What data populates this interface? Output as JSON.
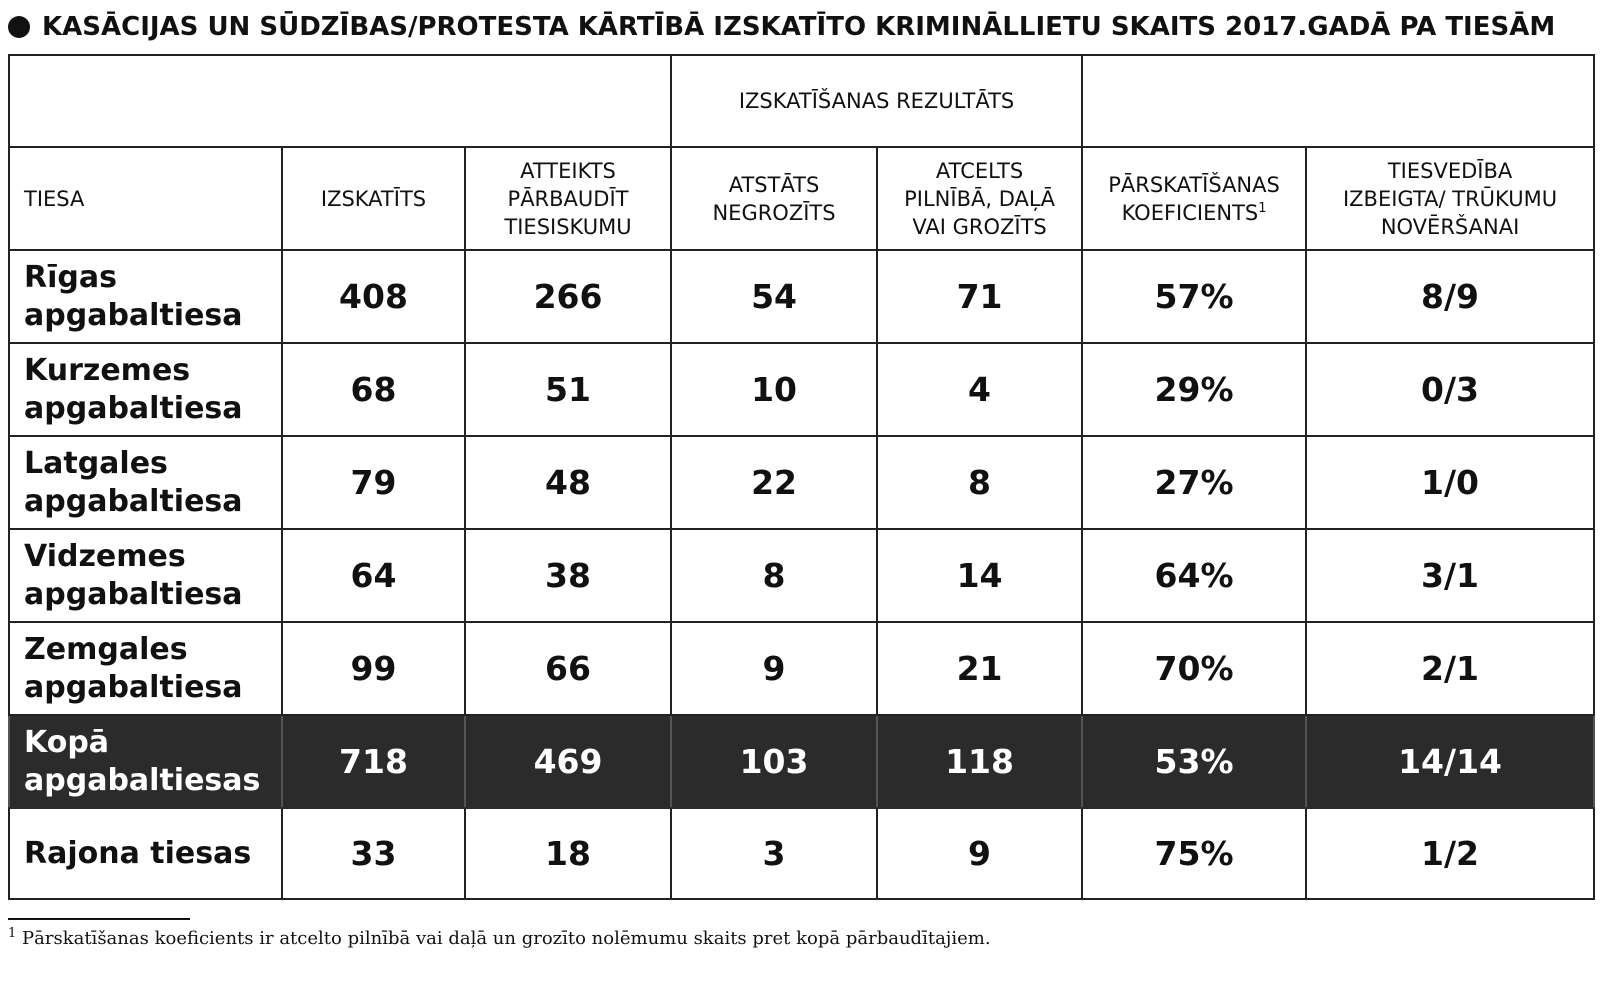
{
  "title": "KASĀCIJAS UN SŪDZĪBAS/PROTESTA KĀRTĪBĀ IZSKATĪTO KRIMINĀLLIETU SKAITS 2017.GADĀ PA TIESĀM",
  "group_header": "IZSKATĪŠANAS REZULTĀTS",
  "columns": {
    "tiesa": "TIESA",
    "izskatits": "IZSKATĪTS",
    "atteikts": [
      "ATTEIKTS",
      "PĀRBAUDĪT",
      "TIESISKUMU"
    ],
    "atstats": [
      "ATSTĀTS",
      "NEGROZĪTS"
    ],
    "atcelts": [
      "ATCELTS",
      "PILNĪBĀ, DAĻĀ",
      "VAI GROZĪTS"
    ],
    "koef": [
      "PĀRSKATĪŠANAS",
      "KOEFICIENTS"
    ],
    "koef_sup": "1",
    "tiesvediba": [
      "TIESVEDĪBA",
      "IZBEIGTA/ TRŪKUMU",
      "NOVĒRŠANAI"
    ]
  },
  "rows": [
    {
      "court": [
        "Rīgas",
        "apgabaltiesa"
      ],
      "izskatits": "408",
      "atteikts": "266",
      "atstats": "54",
      "atcelts": "71",
      "koef": "57%",
      "tiesvediba": "8/9"
    },
    {
      "court": [
        "Kurzemes",
        "apgabaltiesa"
      ],
      "izskatits": "68",
      "atteikts": "51",
      "atstats": "10",
      "atcelts": "4",
      "koef": "29%",
      "tiesvediba": "0/3"
    },
    {
      "court": [
        "Latgales",
        "apgabaltiesa"
      ],
      "izskatits": "79",
      "atteikts": "48",
      "atstats": "22",
      "atcelts": "8",
      "koef": "27%",
      "tiesvediba": "1/0"
    },
    {
      "court": [
        "Vidzemes",
        "apgabaltiesa"
      ],
      "izskatits": "64",
      "atteikts": "38",
      "atstats": "8",
      "atcelts": "14",
      "koef": "64%",
      "tiesvediba": "3/1"
    },
    {
      "court": [
        "Zemgales",
        "apgabaltiesa"
      ],
      "izskatits": "99",
      "atteikts": "66",
      "atstats": "9",
      "atcelts": "21",
      "koef": "70%",
      "tiesvediba": "2/1"
    },
    {
      "court": [
        "Kopā",
        "apgabaltiesas"
      ],
      "izskatits": "718",
      "atteikts": "469",
      "atstats": "103",
      "atcelts": "118",
      "koef": "53%",
      "tiesvediba": "14/14"
    },
    {
      "court": [
        "Rajona tiesas"
      ],
      "izskatits": "33",
      "atteikts": "18",
      "atstats": "3",
      "atcelts": "9",
      "koef": "75%",
      "tiesvediba": "1/2"
    }
  ],
  "footnote": {
    "marker": "1",
    "text": " Pārskatīšanas koeficients ir atcelto pilnībā vai daļā un grozīto nolēmumu skaits pret kopā pārbaudītajiem."
  },
  "colors": {
    "total_row_bg": "#2b2b2b",
    "total_row_text": "#ffffff",
    "border": "#222222"
  }
}
